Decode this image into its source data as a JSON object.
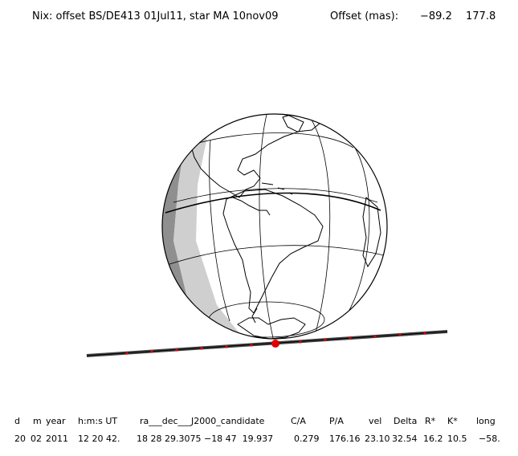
{
  "header": {
    "title": "Nix: offset BS/DE413 01Jul11, star MA 10nov09",
    "offset_label": "Offset (mas):",
    "offset_x": "−89.2",
    "offset_y": "177.8"
  },
  "table": {
    "headers": [
      "d",
      "m",
      "year",
      "h:m:s UT",
      "ra___dec___J2000_candidate",
      "C/A",
      "P/A",
      "vel",
      "Delta",
      "R*",
      "K*",
      "long"
    ],
    "values": [
      "20",
      "02",
      "2011",
      "12 20 42.",
      "18 28 29.3075 −18 47  19.937",
      "0.279",
      "176.16",
      "23.10",
      "32.54",
      "16.2",
      "10.5",
      "−58."
    ]
  },
  "map": {
    "globe_features": [
      "North America",
      "South America",
      "Antarctica",
      "day-night terminator",
      "graticule"
    ],
    "track_color": "#444444",
    "track_marker_color": "#e00000",
    "night_shade_dark": "#8f8f8f",
    "night_shade_light": "#cfcfcf"
  }
}
